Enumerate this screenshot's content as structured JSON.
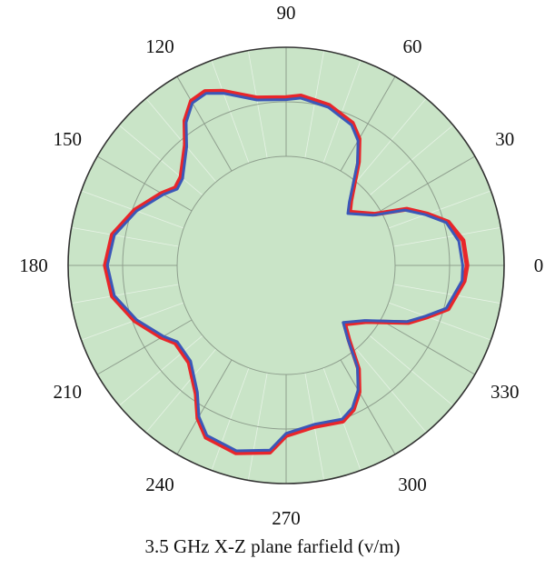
{
  "chart_data": {
    "type": "polar-line",
    "title": "3.5 GHz X-Z plane farfield (v/m)",
    "angle_unit": "degrees",
    "angle_tick_labels": [
      "0",
      "30",
      "60",
      "90",
      "120",
      "150",
      "180",
      "210",
      "240",
      "270",
      "300",
      "330"
    ],
    "angle_ticks": [
      0,
      30,
      60,
      90,
      120,
      150,
      180,
      210,
      240,
      270,
      300,
      330
    ],
    "radial_range": [
      0,
      1
    ],
    "radial_rings": [
      0.5,
      0.75,
      1.0
    ],
    "radial_tick_labels_shown": false,
    "grid": true,
    "legend": "none",
    "angles": [
      0,
      8,
      15,
      20,
      25,
      30,
      40,
      45,
      55,
      60,
      65,
      75,
      85,
      90,
      100,
      110,
      115,
      120,
      125,
      130,
      140,
      145,
      150,
      160,
      170,
      180,
      190,
      200,
      210,
      215,
      225,
      235,
      240,
      245,
      255,
      265,
      270,
      280,
      290,
      295,
      300,
      305,
      310,
      315,
      325,
      335,
      340,
      345,
      355
    ],
    "series": [
      {
        "color": "#e8262a",
        "values": [
          0.83,
          0.82,
          0.77,
          0.69,
          0.61,
          0.47,
          0.38,
          0.42,
          0.58,
          0.67,
          0.72,
          0.76,
          0.78,
          0.77,
          0.78,
          0.85,
          0.88,
          0.87,
          0.81,
          0.72,
          0.63,
          0.62,
          0.66,
          0.74,
          0.81,
          0.83,
          0.81,
          0.74,
          0.66,
          0.62,
          0.63,
          0.72,
          0.81,
          0.87,
          0.89,
          0.86,
          0.78,
          0.75,
          0.76,
          0.73,
          0.67,
          0.58,
          0.45,
          0.38,
          0.45,
          0.62,
          0.69,
          0.77,
          0.82
        ]
      },
      {
        "color": "#3b57b8",
        "values": [
          0.81,
          0.8,
          0.76,
          0.68,
          0.6,
          0.46,
          0.37,
          0.41,
          0.57,
          0.66,
          0.71,
          0.75,
          0.77,
          0.76,
          0.77,
          0.84,
          0.87,
          0.86,
          0.8,
          0.71,
          0.62,
          0.61,
          0.65,
          0.73,
          0.8,
          0.82,
          0.8,
          0.73,
          0.65,
          0.61,
          0.62,
          0.71,
          0.8,
          0.86,
          0.88,
          0.85,
          0.77,
          0.74,
          0.75,
          0.72,
          0.66,
          0.57,
          0.44,
          0.37,
          0.44,
          0.61,
          0.68,
          0.76,
          0.81
        ]
      }
    ],
    "colors": {
      "plot_background": "#c9e4c7",
      "grid_lines": "#8f9f8e",
      "outer_ring": "#333333"
    }
  }
}
